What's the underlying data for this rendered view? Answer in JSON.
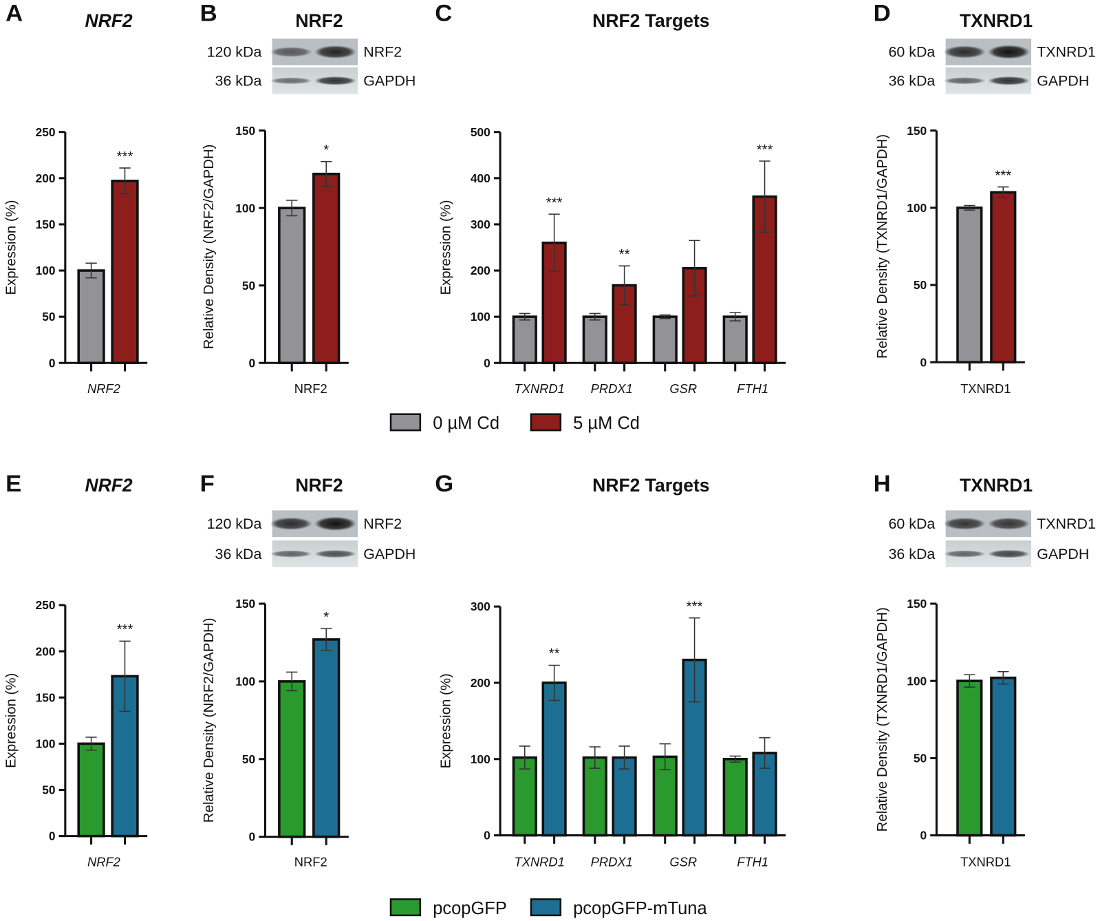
{
  "colors": {
    "ctrl_cd": "#939297",
    "cd5": "#8e1e1c",
    "gfp": "#2a9a2e",
    "mtuna": "#1d6e93"
  },
  "legends": [
    {
      "items": [
        {
          "label": "0 µM Cd",
          "color": "#939297"
        },
        {
          "label": "5 µM Cd",
          "color": "#8e1e1c"
        }
      ]
    },
    {
      "items": [
        {
          "label": "pcopGFP",
          "color": "#2a9a2e"
        },
        {
          "label": "pcopGFP-mTuna",
          "color": "#1d6e93"
        }
      ]
    }
  ],
  "chart_data": [
    {
      "panel": "A",
      "type": "bar",
      "title": "NRF2",
      "title_italic": true,
      "ylabel": "Expression (%)",
      "ylim": [
        0,
        250
      ],
      "yticks": [
        "0",
        "50",
        "100",
        "150",
        "200",
        "250"
      ],
      "categories": [
        "NRF2"
      ],
      "cat_italic": true,
      "series": [
        {
          "name": "0 µM Cd",
          "values": [
            100
          ],
          "err": [
            8
          ]
        },
        {
          "name": "5 µM Cd",
          "values": [
            197
          ],
          "err": [
            14
          ]
        }
      ],
      "annotations": [
        {
          "category": "NRF2",
          "series": 1,
          "text": "***"
        }
      ]
    },
    {
      "panel": "B",
      "type": "bar",
      "title": "NRF2",
      "ylabel": "Relative Density (NRF2/GAPDH)",
      "ylim": [
        0,
        150
      ],
      "yticks": [
        "0",
        "50",
        "100",
        "150"
      ],
      "categories": [
        "NRF2"
      ],
      "blot": {
        "rows": [
          {
            "size": "120 kDa",
            "protein": "NRF2"
          },
          {
            "size": "36 kDa",
            "protein": "GAPDH"
          }
        ]
      },
      "series": [
        {
          "name": "0 µM Cd",
          "values": [
            100
          ],
          "err": [
            5
          ]
        },
        {
          "name": "5 µM Cd",
          "values": [
            122
          ],
          "err": [
            8
          ]
        }
      ],
      "annotations": [
        {
          "category": "NRF2",
          "series": 1,
          "text": "*"
        }
      ]
    },
    {
      "panel": "C",
      "type": "bar",
      "title": "NRF2 Targets",
      "ylabel": "Expression (%)",
      "ylim": [
        0,
        500
      ],
      "yticks": [
        "0",
        "100",
        "200",
        "300",
        "400",
        "500"
      ],
      "categories": [
        "TXNRD1",
        "PRDX1",
        "GSR",
        "FTH1"
      ],
      "cat_italic": true,
      "series": [
        {
          "name": "0 µM Cd",
          "values": [
            100,
            100,
            100,
            100
          ],
          "err": [
            7,
            7,
            4,
            9
          ]
        },
        {
          "name": "5 µM Cd",
          "values": [
            260,
            168,
            205,
            360
          ],
          "err": [
            62,
            42,
            60,
            77
          ]
        }
      ],
      "annotations": [
        {
          "category": "TXNRD1",
          "series": 1,
          "text": "***"
        },
        {
          "category": "PRDX1",
          "series": 1,
          "text": "**"
        },
        {
          "category": "FTH1",
          "series": 1,
          "text": "***"
        }
      ]
    },
    {
      "panel": "D",
      "type": "bar",
      "title": "TXNRD1",
      "ylabel": "Relative Density (TXNRD1/GAPDH)",
      "ylim": [
        0,
        150
      ],
      "yticks": [
        "0",
        "50",
        "100",
        "150"
      ],
      "categories": [
        "TXNRD1"
      ],
      "blot": {
        "rows": [
          {
            "size": "60 kDa",
            "protein": "TXNRD1"
          },
          {
            "size": "36 kDa",
            "protein": "GAPDH"
          }
        ]
      },
      "series": [
        {
          "name": "0 µM Cd",
          "values": [
            100
          ],
          "err": [
            1.5
          ]
        },
        {
          "name": "5 µM Cd",
          "values": [
            110
          ],
          "err": [
            3.5
          ]
        }
      ],
      "annotations": [
        {
          "category": "TXNRD1",
          "series": 1,
          "text": "***"
        }
      ]
    },
    {
      "panel": "E",
      "type": "bar",
      "title": "NRF2",
      "title_italic": true,
      "ylabel": "Expression (%)",
      "ylim": [
        0,
        250
      ],
      "yticks": [
        "0",
        "50",
        "100",
        "150",
        "200",
        "250"
      ],
      "categories": [
        "NRF2"
      ],
      "cat_italic": true,
      "series": [
        {
          "name": "pcopGFP",
          "values": [
            100
          ],
          "err": [
            7
          ]
        },
        {
          "name": "pcopGFP-mTuna",
          "values": [
            173
          ],
          "err": [
            38
          ]
        }
      ],
      "annotations": [
        {
          "category": "NRF2",
          "series": 1,
          "text": "***"
        }
      ]
    },
    {
      "panel": "F",
      "type": "bar",
      "title": "NRF2",
      "ylabel": "Relative Density (NRF2/GAPDH)",
      "ylim": [
        0,
        150
      ],
      "yticks": [
        "0",
        "50",
        "100",
        "150"
      ],
      "categories": [
        "NRF2"
      ],
      "blot": {
        "rows": [
          {
            "size": "120 kDa",
            "protein": "NRF2"
          },
          {
            "size": "36 kDa",
            "protein": "GAPDH"
          }
        ]
      },
      "series": [
        {
          "name": "pcopGFP",
          "values": [
            100
          ],
          "err": [
            6
          ]
        },
        {
          "name": "pcopGFP-mTuna",
          "values": [
            127
          ],
          "err": [
            7
          ]
        }
      ],
      "annotations": [
        {
          "category": "NRF2",
          "series": 1,
          "text": "*"
        }
      ]
    },
    {
      "panel": "G",
      "type": "bar",
      "title": "NRF2 Targets",
      "ylabel": "Expression (%)",
      "ylim": [
        0,
        300
      ],
      "yticks": [
        "0",
        "100",
        "200",
        "300"
      ],
      "categories": [
        "TXNRD1",
        "PRDX1",
        "GSR",
        "FTH1"
      ],
      "cat_italic": true,
      "series": [
        {
          "name": "pcopGFP",
          "values": [
            102,
            102,
            103,
            100
          ],
          "err": [
            15,
            14,
            17,
            4
          ]
        },
        {
          "name": "pcopGFP-mTuna",
          "values": [
            200,
            102,
            230,
            108
          ],
          "err": [
            23,
            15,
            55,
            20
          ]
        }
      ],
      "annotations": [
        {
          "category": "TXNRD1",
          "series": 1,
          "text": "**"
        },
        {
          "category": "GSR",
          "series": 1,
          "text": "***"
        }
      ]
    },
    {
      "panel": "H",
      "type": "bar",
      "title": "TXNRD1",
      "ylabel": "Relative Density (TXNRD1/GAPDH)",
      "ylim": [
        0,
        150
      ],
      "yticks": [
        "0",
        "50",
        "100",
        "150"
      ],
      "categories": [
        "TXNRD1"
      ],
      "blot": {
        "rows": [
          {
            "size": "60 kDa",
            "protein": "TXNRD1"
          },
          {
            "size": "36 kDa",
            "protein": "GAPDH"
          }
        ]
      },
      "series": [
        {
          "name": "pcopGFP",
          "values": [
            100
          ],
          "err": [
            4
          ]
        },
        {
          "name": "pcopGFP-mTuna",
          "values": [
            102
          ],
          "err": [
            4
          ]
        }
      ],
      "annotations": []
    }
  ]
}
